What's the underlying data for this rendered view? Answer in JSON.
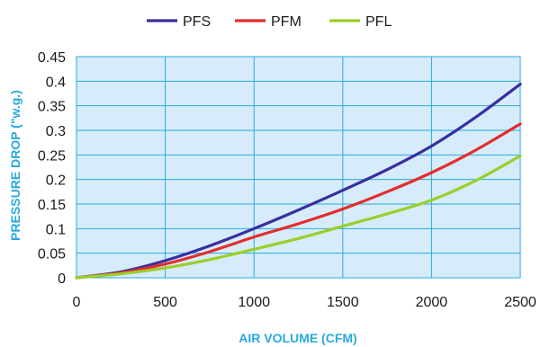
{
  "chart_data": {
    "type": "line",
    "xlabel": "AIR VOLUME (CFM)",
    "ylabel": "PRESSURE DROP (\"w.g.)",
    "xlim": [
      0,
      2500
    ],
    "ylim": [
      0,
      0.45
    ],
    "x_ticks": [
      "0",
      "500",
      "1000",
      "1500",
      "2000",
      "2500"
    ],
    "y_ticks": [
      "0",
      "0.05",
      "0.1",
      "0.15",
      "0.2",
      "0.25",
      "0.3",
      "0.35",
      "0.4",
      "0.45"
    ],
    "grid": true,
    "legend_position": "top-center",
    "colors": {
      "plot_background": "#d6ecfa",
      "grid": "#29a9e0",
      "axis_title": "#29a9e0"
    },
    "series": [
      {
        "name": "PFS",
        "color": "#3a2ea0",
        "x": [
          0,
          250,
          500,
          750,
          1000,
          1250,
          1500,
          1750,
          2000,
          2250,
          2500
        ],
        "values": [
          0,
          0.012,
          0.035,
          0.065,
          0.1,
          0.138,
          0.178,
          0.22,
          0.268,
          0.327,
          0.394
        ]
      },
      {
        "name": "PFM",
        "color": "#e32d2d",
        "x": [
          0,
          250,
          500,
          750,
          1000,
          1250,
          1500,
          1750,
          2000,
          2250,
          2500
        ],
        "values": [
          0,
          0.01,
          0.028,
          0.053,
          0.083,
          0.11,
          0.14,
          0.175,
          0.214,
          0.26,
          0.313
        ]
      },
      {
        "name": "PFL",
        "color": "#9ccd2a",
        "x": [
          0,
          250,
          500,
          750,
          1000,
          1250,
          1500,
          1750,
          2000,
          2250,
          2500
        ],
        "values": [
          0,
          0.008,
          0.02,
          0.037,
          0.058,
          0.08,
          0.105,
          0.13,
          0.158,
          0.198,
          0.248
        ]
      }
    ]
  }
}
